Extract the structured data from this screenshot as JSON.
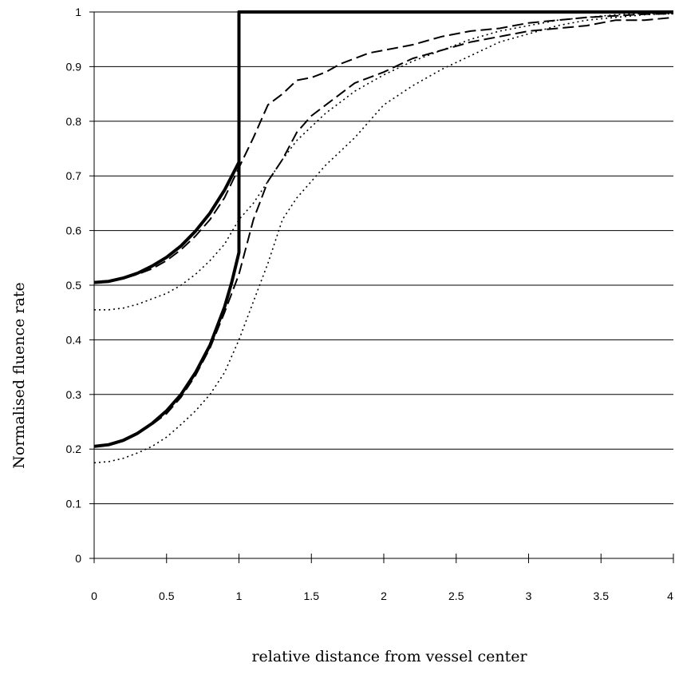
{
  "chart_data": {
    "type": "line",
    "title": "",
    "xlabel": "relative distance from vessel center",
    "ylabel": "Normalised fluence rate",
    "xlim": [
      0,
      4
    ],
    "ylim": [
      0,
      1
    ],
    "xticks": [
      "0",
      "0.5",
      "1",
      "1.5",
      "2",
      "2.5",
      "3",
      "3.5",
      "4"
    ],
    "yticks": [
      "0",
      "0.1",
      "0.2",
      "0.3",
      "0.4",
      "0.5",
      "0.6",
      "0.7",
      "0.8",
      "0.9",
      "1"
    ],
    "grid": "horizontal",
    "legend": "none",
    "series": [
      {
        "style": "solid-thick",
        "points": [
          [
            0,
            0.505
          ],
          [
            0.1,
            0.507
          ],
          [
            0.2,
            0.513
          ],
          [
            0.3,
            0.522
          ],
          [
            0.4,
            0.535
          ],
          [
            0.5,
            0.551
          ],
          [
            0.6,
            0.572
          ],
          [
            0.7,
            0.599
          ],
          [
            0.8,
            0.632
          ],
          [
            0.9,
            0.674
          ],
          [
            1.0,
            0.725
          ],
          [
            1.0,
            1.0
          ],
          [
            4.0,
            1.0
          ]
        ]
      },
      {
        "style": "solid-thick",
        "points": [
          [
            0,
            0.205
          ],
          [
            0.1,
            0.208
          ],
          [
            0.2,
            0.216
          ],
          [
            0.3,
            0.229
          ],
          [
            0.4,
            0.247
          ],
          [
            0.5,
            0.27
          ],
          [
            0.6,
            0.3
          ],
          [
            0.7,
            0.34
          ],
          [
            0.8,
            0.39
          ],
          [
            0.9,
            0.46
          ],
          [
            0.95,
            0.505
          ],
          [
            1.0,
            0.56
          ],
          [
            1.0,
            1.0
          ],
          [
            4.0,
            1.0
          ]
        ]
      },
      {
        "style": "dashed",
        "points": [
          [
            0,
            0.505
          ],
          [
            0.1,
            0.507
          ],
          [
            0.2,
            0.512
          ],
          [
            0.3,
            0.52
          ],
          [
            0.4,
            0.53
          ],
          [
            0.5,
            0.545
          ],
          [
            0.6,
            0.565
          ],
          [
            0.7,
            0.59
          ],
          [
            0.8,
            0.62
          ],
          [
            0.9,
            0.66
          ],
          [
            1.0,
            0.715
          ],
          [
            1.1,
            0.77
          ],
          [
            1.2,
            0.83
          ],
          [
            1.3,
            0.85
          ],
          [
            1.4,
            0.875
          ],
          [
            1.5,
            0.88
          ],
          [
            1.6,
            0.89
          ],
          [
            1.7,
            0.905
          ],
          [
            1.8,
            0.915
          ],
          [
            1.9,
            0.925
          ],
          [
            2.0,
            0.93
          ],
          [
            2.1,
            0.935
          ],
          [
            2.2,
            0.94
          ],
          [
            2.4,
            0.955
          ],
          [
            2.6,
            0.965
          ],
          [
            2.8,
            0.97
          ],
          [
            3.0,
            0.98
          ],
          [
            3.2,
            0.985
          ],
          [
            3.4,
            0.99
          ],
          [
            3.6,
            0.993
          ],
          [
            3.8,
            0.996
          ],
          [
            4.0,
            0.997
          ]
        ]
      },
      {
        "style": "dashed",
        "points": [
          [
            0,
            0.205
          ],
          [
            0.1,
            0.208
          ],
          [
            0.2,
            0.215
          ],
          [
            0.3,
            0.228
          ],
          [
            0.4,
            0.245
          ],
          [
            0.5,
            0.265
          ],
          [
            0.6,
            0.295
          ],
          [
            0.7,
            0.335
          ],
          [
            0.8,
            0.385
          ],
          [
            0.9,
            0.45
          ],
          [
            1.0,
            0.52
          ],
          [
            1.1,
            0.62
          ],
          [
            1.2,
            0.69
          ],
          [
            1.3,
            0.73
          ],
          [
            1.4,
            0.78
          ],
          [
            1.5,
            0.81
          ],
          [
            1.6,
            0.83
          ],
          [
            1.7,
            0.85
          ],
          [
            1.8,
            0.87
          ],
          [
            2.0,
            0.89
          ],
          [
            2.2,
            0.915
          ],
          [
            2.4,
            0.93
          ],
          [
            2.6,
            0.945
          ],
          [
            2.8,
            0.955
          ],
          [
            3.0,
            0.965
          ],
          [
            3.2,
            0.97
          ],
          [
            3.4,
            0.975
          ],
          [
            3.6,
            0.985
          ],
          [
            3.8,
            0.985
          ],
          [
            4.0,
            0.99
          ]
        ]
      },
      {
        "style": "dotted",
        "points": [
          [
            0,
            0.455
          ],
          [
            0.1,
            0.455
          ],
          [
            0.2,
            0.458
          ],
          [
            0.3,
            0.465
          ],
          [
            0.4,
            0.475
          ],
          [
            0.5,
            0.485
          ],
          [
            0.6,
            0.5
          ],
          [
            0.7,
            0.52
          ],
          [
            0.8,
            0.545
          ],
          [
            0.9,
            0.575
          ],
          [
            1.0,
            0.62
          ],
          [
            1.1,
            0.65
          ],
          [
            1.2,
            0.69
          ],
          [
            1.3,
            0.73
          ],
          [
            1.4,
            0.765
          ],
          [
            1.5,
            0.79
          ],
          [
            1.6,
            0.815
          ],
          [
            1.7,
            0.835
          ],
          [
            1.8,
            0.855
          ],
          [
            1.9,
            0.87
          ],
          [
            2.0,
            0.885
          ],
          [
            2.2,
            0.91
          ],
          [
            2.4,
            0.93
          ],
          [
            2.6,
            0.95
          ],
          [
            2.8,
            0.965
          ],
          [
            3.0,
            0.975
          ],
          [
            3.2,
            0.985
          ],
          [
            3.4,
            0.99
          ],
          [
            3.6,
            0.995
          ],
          [
            3.8,
            0.997
          ],
          [
            4.0,
            0.998
          ]
        ]
      },
      {
        "style": "dotted",
        "points": [
          [
            0,
            0.175
          ],
          [
            0.1,
            0.177
          ],
          [
            0.2,
            0.183
          ],
          [
            0.3,
            0.193
          ],
          [
            0.4,
            0.205
          ],
          [
            0.5,
            0.222
          ],
          [
            0.6,
            0.245
          ],
          [
            0.7,
            0.27
          ],
          [
            0.8,
            0.3
          ],
          [
            0.9,
            0.34
          ],
          [
            1.0,
            0.4
          ],
          [
            1.1,
            0.47
          ],
          [
            1.2,
            0.54
          ],
          [
            1.3,
            0.62
          ],
          [
            1.4,
            0.66
          ],
          [
            1.5,
            0.69
          ],
          [
            1.6,
            0.72
          ],
          [
            1.7,
            0.745
          ],
          [
            1.8,
            0.77
          ],
          [
            1.9,
            0.8
          ],
          [
            2.0,
            0.83
          ],
          [
            2.2,
            0.865
          ],
          [
            2.4,
            0.895
          ],
          [
            2.6,
            0.92
          ],
          [
            2.8,
            0.945
          ],
          [
            3.0,
            0.96
          ],
          [
            3.2,
            0.975
          ],
          [
            3.4,
            0.985
          ],
          [
            3.6,
            0.99
          ],
          [
            3.8,
            0.995
          ],
          [
            4.0,
            0.997
          ]
        ]
      }
    ]
  }
}
